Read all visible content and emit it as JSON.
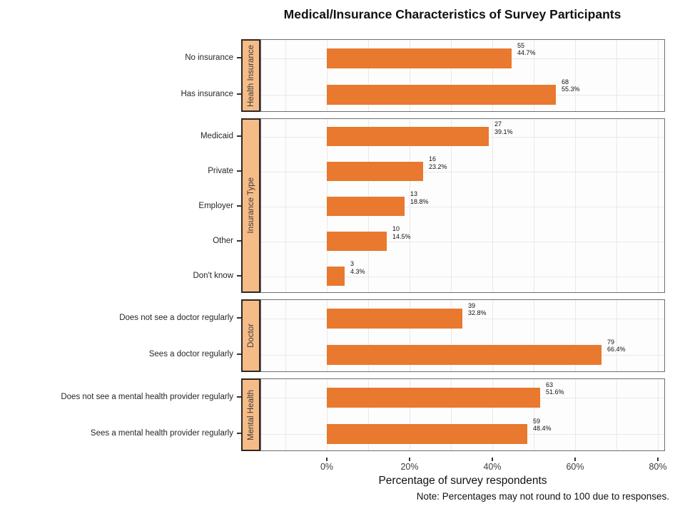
{
  "title": "Medical/Insurance Characteristics of Survey Participants",
  "xlabel": "Percentage of survey respondents",
  "note": "Note: Percentages may not round to 100 due to responses.",
  "colors": {
    "bar": "#E8792E",
    "strip_bg": "#F6BC88",
    "strip_border": "#2F2823",
    "panel_border": "#6E6E6E",
    "grid": "#E9E9E9"
  },
  "chart_data": {
    "type": "bar",
    "orientation": "horizontal",
    "title": "Medical/Insurance Characteristics of Survey Participants",
    "xlabel": "Percentage of survey respondents",
    "caption": "Note: Percentages may not round to 100 due to responses.",
    "xlim": [
      0,
      80
    ],
    "x_tick_values": [
      0,
      20,
      40,
      60,
      80
    ],
    "x_tick_labels": [
      "0%",
      "20%",
      "40%",
      "60%",
      "80%"
    ],
    "x_grid_values": [
      -10,
      0,
      10,
      20,
      30,
      40,
      50,
      60,
      70,
      80
    ],
    "grid": true,
    "legend": false,
    "facets": [
      {
        "strip": "Health Insurance",
        "rows": [
          {
            "label": "No insurance",
            "count": 55,
            "pct": 44.7
          },
          {
            "label": "Has insurance",
            "count": 68,
            "pct": 55.3
          }
        ]
      },
      {
        "strip": "Insurance Type",
        "rows": [
          {
            "label": "Medicaid",
            "count": 27,
            "pct": 39.1
          },
          {
            "label": "Private",
            "count": 16,
            "pct": 23.2
          },
          {
            "label": "Employer",
            "count": 13,
            "pct": 18.8
          },
          {
            "label": "Other",
            "count": 10,
            "pct": 14.5
          },
          {
            "label": "Don't know",
            "count": 3,
            "pct": 4.3
          }
        ]
      },
      {
        "strip": "Doctor",
        "rows": [
          {
            "label": "Does not see a doctor regularly",
            "count": 39,
            "pct": 32.8
          },
          {
            "label": "Sees a doctor regularly",
            "count": 79,
            "pct": 66.4
          }
        ]
      },
      {
        "strip": "Mental Health",
        "rows": [
          {
            "label": "Does not see a mental health provider regularly",
            "count": 63,
            "pct": 51.6
          },
          {
            "label": "Sees a mental health provider regularly",
            "count": 59,
            "pct": 48.4
          }
        ]
      }
    ]
  }
}
